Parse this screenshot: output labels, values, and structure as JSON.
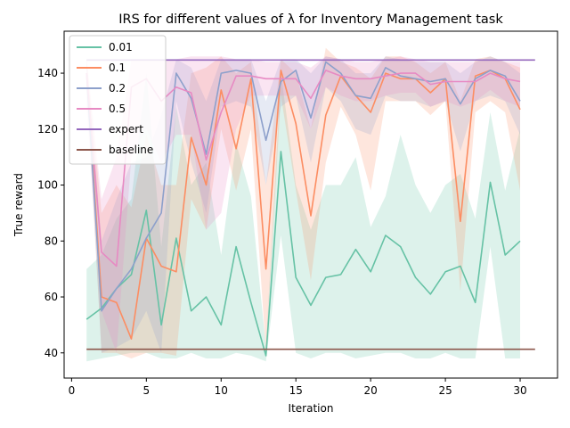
{
  "chart_data": {
    "type": "line",
    "title": "IRS for different values of λ for Inventory Management task",
    "xlabel": "Iteration",
    "ylabel": "True reward",
    "xlim": [
      -0.5,
      32.5
    ],
    "ylim": [
      31,
      155
    ],
    "xticks": [
      0,
      5,
      10,
      15,
      20,
      25,
      30
    ],
    "yticks": [
      40,
      60,
      80,
      100,
      120,
      140
    ],
    "grid": false,
    "legend_position": "top-left",
    "x": [
      1,
      2,
      3,
      4,
      5,
      6,
      7,
      8,
      9,
      10,
      11,
      12,
      13,
      14,
      15,
      16,
      17,
      18,
      19,
      20,
      21,
      22,
      23,
      24,
      25,
      26,
      27,
      28,
      29,
      30
    ],
    "series": [
      {
        "name": "0.01",
        "color": "#66c2a5",
        "values": [
          52,
          56,
          63,
          68,
          91,
          50,
          81,
          55,
          60,
          50,
          78,
          58,
          39,
          112,
          67,
          57,
          67,
          68,
          77,
          69,
          82,
          78,
          67,
          61,
          69,
          71,
          58,
          101,
          75,
          80
        ],
        "lower": [
          37,
          38,
          39,
          40,
          40,
          38,
          38,
          40,
          38,
          38,
          40,
          39,
          37,
          82,
          40,
          38,
          40,
          40,
          38,
          39,
          40,
          40,
          38,
          38,
          40,
          38,
          38,
          78,
          38,
          38
        ],
        "upper": [
          70,
          75,
          88,
          95,
          140,
          78,
          128,
          100,
          108,
          75,
          115,
          96,
          42,
          140,
          100,
          84,
          100,
          100,
          110,
          85,
          96,
          118,
          100,
          90,
          100,
          104,
          88,
          126,
          98,
          120
        ]
      },
      {
        "name": "0.1",
        "color": "#fc8d62",
        "values": [
          140,
          60,
          58,
          45,
          81,
          71,
          69,
          117,
          100,
          134,
          113,
          138,
          70,
          141,
          122,
          89,
          125,
          139,
          132,
          126,
          140,
          138,
          138,
          133,
          138,
          87,
          139,
          141,
          138,
          127
        ],
        "lower": [
          138,
          40,
          40,
          38,
          40,
          40,
          39,
          95,
          84,
          120,
          98,
          120,
          40,
          132,
          98,
          66,
          108,
          128,
          118,
          98,
          130,
          130,
          130,
          125,
          130,
          62,
          126,
          130,
          126,
          98
        ],
        "upper": [
          145,
          90,
          100,
          92,
          118,
          100,
          100,
          140,
          142,
          146,
          140,
          144,
          100,
          145,
          140,
          120,
          149,
          144,
          142,
          138,
          146,
          146,
          144,
          140,
          144,
          130,
          145,
          146,
          144,
          142
        ]
      },
      {
        "name": "0.2",
        "color": "#8da0cb",
        "values": [
          140,
          55,
          63,
          70,
          81,
          90,
          140,
          131,
          111,
          140,
          141,
          140,
          116,
          137,
          141,
          124,
          144,
          140,
          132,
          131,
          142,
          139,
          138,
          137,
          138,
          129,
          138,
          141,
          139,
          130
        ],
        "lower": [
          135,
          40,
          42,
          45,
          55,
          40,
          130,
          108,
          90,
          128,
          130,
          128,
          100,
          128,
          132,
          108,
          135,
          130,
          120,
          118,
          132,
          130,
          130,
          128,
          130,
          112,
          130,
          132,
          130,
          118
        ],
        "upper": [
          145,
          80,
          95,
          108,
          110,
          125,
          145,
          142,
          130,
          145,
          145,
          145,
          130,
          145,
          145,
          140,
          146,
          145,
          140,
          140,
          146,
          145,
          144,
          144,
          144,
          140,
          144,
          146,
          144,
          140
        ]
      },
      {
        "name": "0.5",
        "color": "#e78ac3",
        "values": [
          140,
          76,
          71,
          135,
          138,
          130,
          135,
          133,
          109,
          126,
          139,
          139,
          138,
          138,
          138,
          131,
          141,
          139,
          138,
          138,
          139,
          140,
          140,
          136,
          137,
          137,
          137,
          140,
          138,
          137
        ],
        "lower": [
          128,
          55,
          40,
          110,
          120,
          108,
          118,
          118,
          84,
          90,
          120,
          132,
          132,
          132,
          132,
          120,
          135,
          132,
          130,
          130,
          132,
          133,
          133,
          128,
          130,
          128,
          130,
          134,
          130,
          128
        ],
        "upper": [
          146,
          95,
          110,
          145,
          145,
          145,
          145,
          146,
          146,
          146,
          145,
          145,
          144,
          144,
          144,
          142,
          146,
          145,
          144,
          144,
          145,
          146,
          145,
          144,
          144,
          144,
          144,
          145,
          144,
          144
        ]
      },
      {
        "name": "expert",
        "color": "#9467bd",
        "x": [
          1,
          31
        ],
        "values": [
          144.7,
          144.7
        ]
      },
      {
        "name": "baseline",
        "color": "#8c564b",
        "x": [
          1,
          31
        ],
        "values": [
          41.3,
          41.3
        ]
      }
    ]
  }
}
